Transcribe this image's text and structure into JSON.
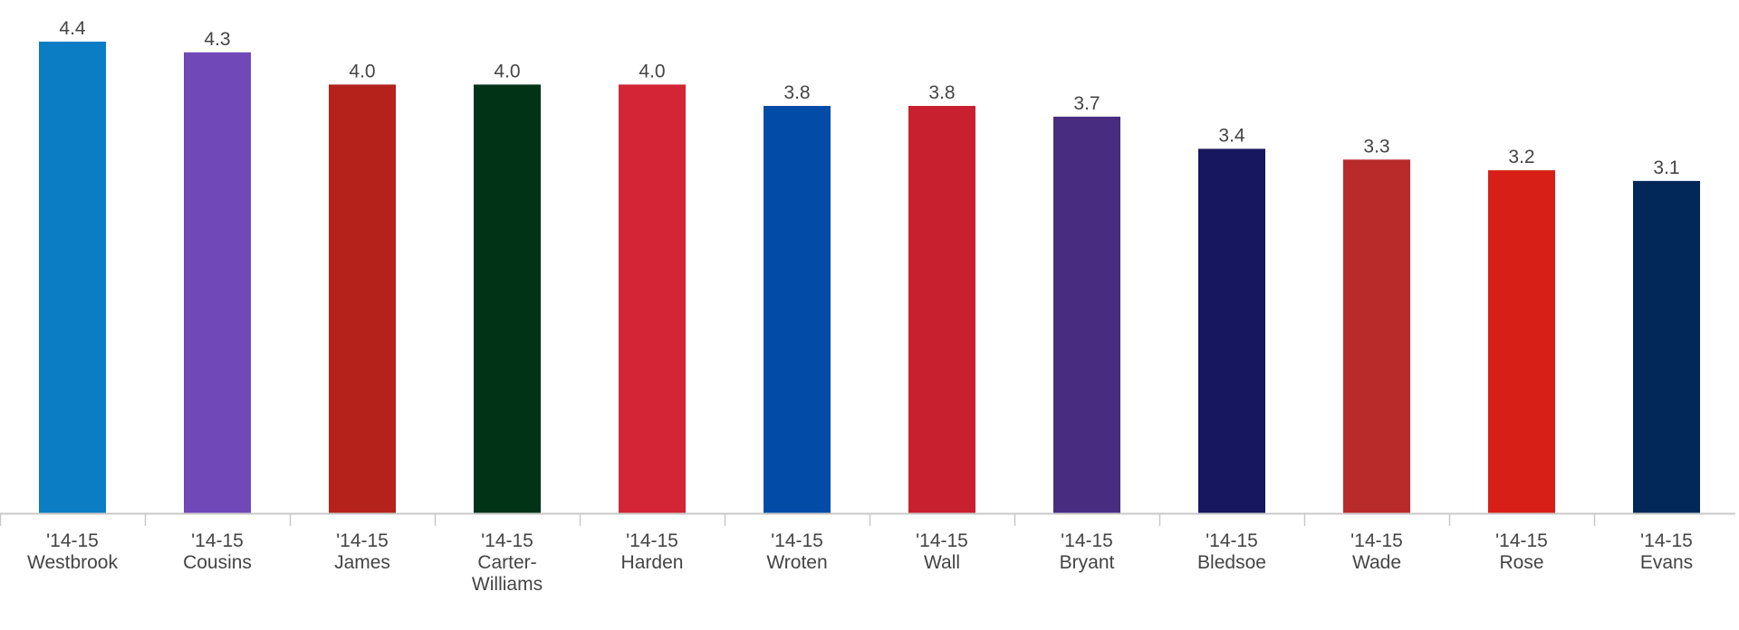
{
  "chart_data": {
    "type": "bar",
    "title": "",
    "xlabel": "",
    "ylabel": "",
    "ylim": [
      0,
      4.4
    ],
    "grid": false,
    "legend": "none",
    "categories": [
      [
        "'14-15",
        "Westbrook"
      ],
      [
        "'14-15",
        "Cousins"
      ],
      [
        "'14-15",
        "James"
      ],
      [
        "'14-15",
        "Carter-",
        "Williams"
      ],
      [
        "'14-15",
        "Harden"
      ],
      [
        "'14-15",
        "Wroten"
      ],
      [
        "'14-15",
        "Wall"
      ],
      [
        "'14-15",
        "Bryant"
      ],
      [
        "'14-15",
        "Bledsoe"
      ],
      [
        "'14-15",
        "Wade"
      ],
      [
        "'14-15",
        "Rose"
      ],
      [
        "'14-15",
        "Evans"
      ]
    ],
    "values": [
      4.4,
      4.3,
      4.0,
      4.0,
      4.0,
      3.8,
      3.8,
      3.7,
      3.4,
      3.3,
      3.2,
      3.1
    ],
    "value_labels": [
      "4.4",
      "4.3",
      "4.0",
      "4.0",
      "4.0",
      "3.8",
      "3.8",
      "3.7",
      "3.4",
      "3.3",
      "3.2",
      "3.1"
    ],
    "colors": [
      "#0a7dc4",
      "#7048b8",
      "#b5221c",
      "#013417",
      "#d32535",
      "#024ca8",
      "#c9202f",
      "#482c80",
      "#16175e",
      "#b82b2a",
      "#d81f17",
      "#02285a"
    ],
    "axis_color": "#c8c8c8"
  }
}
